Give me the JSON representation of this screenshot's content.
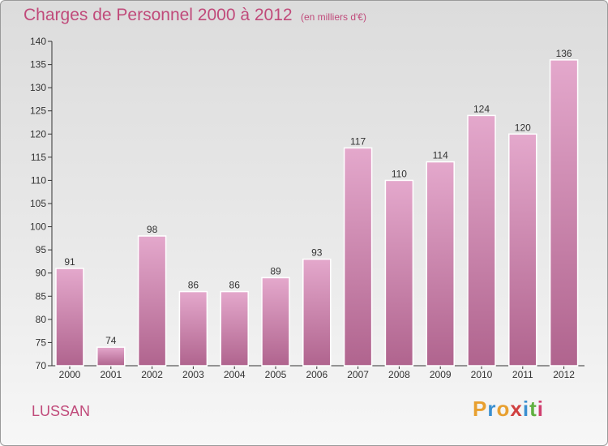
{
  "title": "Charges de Personnel 2000 à 2012",
  "subtitle": "(en milliers d'€)",
  "location": "LUSSAN",
  "logo": {
    "text": "Proxiti",
    "letters": [
      "P",
      "r",
      "o",
      "x",
      "i",
      "t",
      "i"
    ],
    "colors": [
      "#e8a030",
      "#3a8fd0",
      "#e8a030",
      "#d04040",
      "#3a8fd0",
      "#60b040",
      "#d04070"
    ]
  },
  "colors": {
    "bar_top": "#e4a8cc",
    "bar_bottom": "#b0648e",
    "title": "#c04a7a",
    "axis": "#333333"
  },
  "chart_data": {
    "type": "bar",
    "title": "Charges de Personnel 2000 à 2012",
    "subtitle": "(en milliers d'€)",
    "categories": [
      "2000",
      "2001",
      "2002",
      "2003",
      "2004",
      "2005",
      "2006",
      "2007",
      "2008",
      "2009",
      "2010",
      "2011",
      "2012"
    ],
    "values": [
      91,
      74,
      98,
      86,
      86,
      89,
      93,
      117,
      110,
      114,
      124,
      120,
      136
    ],
    "ylim": [
      70,
      140
    ],
    "yticks": [
      70,
      75,
      80,
      85,
      90,
      95,
      100,
      105,
      110,
      115,
      120,
      125,
      130,
      135,
      140
    ],
    "grid": false,
    "legend": "none"
  }
}
